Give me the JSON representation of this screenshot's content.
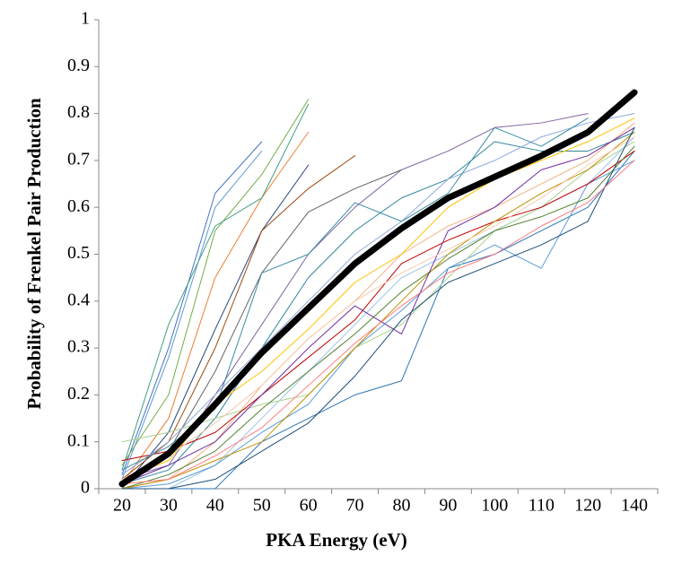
{
  "chart_data": {
    "type": "line",
    "xlabel": "PKA Energy (eV)",
    "ylabel": "Probability of Frenkel Pair Production",
    "categories": [
      "20",
      "30",
      "40",
      "50",
      "60",
      "70",
      "80",
      "90",
      "100",
      "110",
      "120",
      "140"
    ],
    "ylim": [
      0,
      1
    ],
    "yticks": [
      0,
      0.1,
      0.2,
      0.3,
      0.4,
      0.5,
      0.6,
      0.7,
      0.8,
      0.9,
      1
    ],
    "grid": false,
    "series": [
      {
        "color": "#4472c4",
        "values": [
          0.03,
          0.3,
          0.63,
          0.74,
          null,
          null,
          null,
          null,
          null,
          null,
          null,
          null
        ]
      },
      {
        "color": "#5b9bd5",
        "values": [
          0.02,
          0.28,
          0.6,
          0.72,
          null,
          null,
          null,
          null,
          null,
          null,
          null,
          null
        ]
      },
      {
        "color": "#70ad47",
        "values": [
          0.05,
          0.2,
          0.55,
          0.67,
          0.83,
          null,
          null,
          null,
          null,
          null,
          null,
          null
        ]
      },
      {
        "color": "#ed7d31",
        "values": [
          0.01,
          0.15,
          0.45,
          0.62,
          0.76,
          null,
          null,
          null,
          null,
          null,
          null,
          null
        ]
      },
      {
        "color": "#43a085",
        "values": [
          0.04,
          0.35,
          0.56,
          0.62,
          0.82,
          null,
          null,
          null,
          null,
          null,
          null,
          null
        ]
      },
      {
        "color": "#264478",
        "values": [
          0.0,
          0.12,
          0.34,
          0.55,
          0.69,
          null,
          null,
          null,
          null,
          null,
          null,
          null
        ]
      },
      {
        "color": "#9e480e",
        "values": [
          0.02,
          0.1,
          0.3,
          0.55,
          0.64,
          0.71,
          null,
          null,
          null,
          null,
          null,
          null
        ]
      },
      {
        "color": "#636363",
        "values": [
          0.01,
          0.08,
          0.25,
          0.46,
          0.59,
          0.64,
          0.68,
          null,
          null,
          null,
          null,
          null
        ]
      },
      {
        "color": "#8064a2",
        "values": [
          0.02,
          0.05,
          0.2,
          0.35,
          0.5,
          0.6,
          0.68,
          0.72,
          0.77,
          0.78,
          0.8,
          null
        ]
      },
      {
        "color": "#31859c",
        "values": [
          0.01,
          0.04,
          0.15,
          0.3,
          0.45,
          0.55,
          0.62,
          0.66,
          0.74,
          0.72,
          0.72,
          0.76
        ]
      },
      {
        "color": "#f4b183",
        "values": [
          0.0,
          0.02,
          0.1,
          0.22,
          0.32,
          0.4,
          0.5,
          0.56,
          0.6,
          0.65,
          0.7,
          0.78
        ]
      },
      {
        "color": "#9dc3e6",
        "values": [
          0.0,
          0.0,
          0.05,
          0.15,
          0.25,
          0.35,
          0.45,
          0.5,
          0.55,
          0.6,
          0.65,
          0.75
        ]
      },
      {
        "color": "#2e75b6",
        "values": [
          0.0,
          0.0,
          0.0,
          0.1,
          0.15,
          0.2,
          0.23,
          0.47,
          0.5,
          0.55,
          0.6,
          0.72
        ]
      },
      {
        "color": "#5b9bd5",
        "values": [
          0.0,
          0.01,
          0.05,
          0.12,
          0.18,
          0.3,
          0.38,
          0.47,
          0.52,
          0.47,
          0.65,
          0.7
        ]
      },
      {
        "color": "#a9d18e",
        "values": [
          0.1,
          0.12,
          0.15,
          0.18,
          0.2,
          0.3,
          0.35,
          0.45,
          0.55,
          0.6,
          0.68,
          0.74
        ]
      },
      {
        "color": "#c00000",
        "values": [
          0.06,
          0.08,
          0.12,
          0.2,
          0.28,
          0.36,
          0.48,
          0.53,
          0.57,
          0.6,
          0.65,
          0.72
        ]
      },
      {
        "color": "#ffc000",
        "values": [
          0.02,
          0.06,
          0.18,
          0.25,
          0.34,
          0.44,
          0.5,
          0.6,
          0.66,
          0.7,
          0.74,
          0.79
        ]
      },
      {
        "color": "#8faadc",
        "values": [
          0.03,
          0.1,
          0.2,
          0.3,
          0.4,
          0.5,
          0.57,
          0.66,
          0.7,
          0.75,
          0.78,
          0.8
        ]
      },
      {
        "color": "#548235",
        "values": [
          0.0,
          0.03,
          0.08,
          0.17,
          0.25,
          0.33,
          0.42,
          0.49,
          0.55,
          0.58,
          0.62,
          0.73
        ]
      },
      {
        "color": "#bf9000",
        "values": [
          0.0,
          0.02,
          0.06,
          0.1,
          0.2,
          0.3,
          0.4,
          0.5,
          0.57,
          0.63,
          0.68,
          0.76
        ]
      },
      {
        "color": "#7030a0",
        "values": [
          0.01,
          0.05,
          0.1,
          0.2,
          0.3,
          0.39,
          0.33,
          0.55,
          0.6,
          0.68,
          0.71,
          0.77
        ]
      },
      {
        "color": "#f8cbad",
        "values": [
          0.02,
          0.07,
          0.14,
          0.22,
          0.32,
          0.4,
          0.46,
          0.51,
          0.56,
          0.62,
          0.69,
          0.75
        ]
      },
      {
        "color": "#1f4e79",
        "values": [
          0.0,
          0.0,
          0.02,
          0.08,
          0.14,
          0.24,
          0.36,
          0.44,
          0.48,
          0.52,
          0.57,
          0.77
        ]
      },
      {
        "color": "#ff7c80",
        "values": [
          0.01,
          0.02,
          0.07,
          0.13,
          0.22,
          0.31,
          0.39,
          0.46,
          0.5,
          0.56,
          0.61,
          0.7
        ]
      },
      {
        "color": "#3b8ea5",
        "values": [
          0.04,
          0.09,
          0.17,
          0.46,
          0.5,
          0.61,
          0.57,
          0.63,
          0.77,
          0.73,
          0.79,
          null
        ]
      },
      {
        "color": "#000000",
        "line_width": 7,
        "values": [
          0.01,
          0.075,
          0.18,
          0.29,
          0.385,
          0.48,
          0.555,
          0.62,
          0.665,
          0.71,
          0.76,
          0.845
        ]
      }
    ]
  }
}
